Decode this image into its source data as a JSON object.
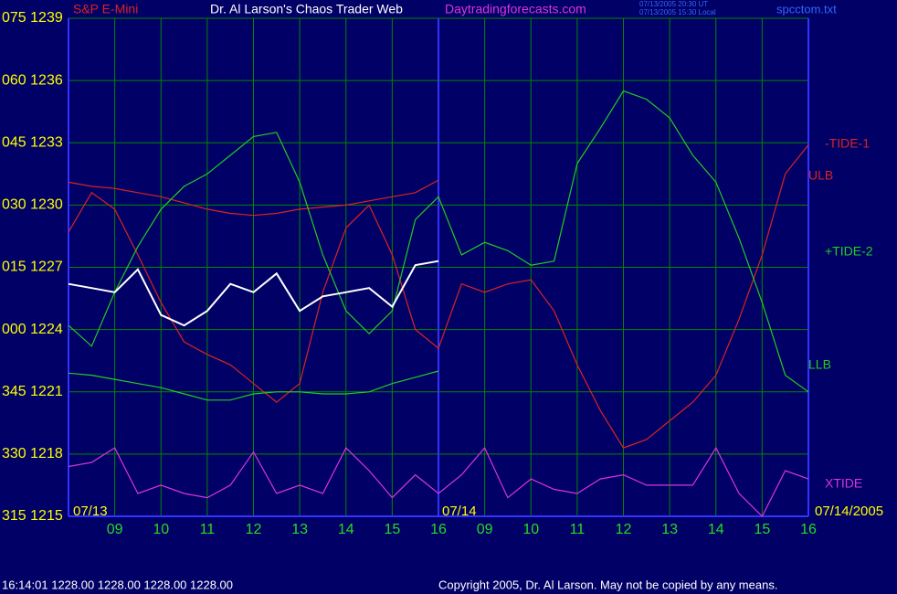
{
  "chart_data": {
    "type": "line",
    "instrument": "S&P E-Mini",
    "title": "Dr. Al Larson's Chaos Trader Web",
    "site": "Daytradingforecasts.com",
    "timestamps": [
      "07/13/2005 20:30 UT",
      "07/13/2005 15:30 Local"
    ],
    "file": "spcctom.txt",
    "dates": [
      "07/13",
      "07/14",
      "07/14/2005"
    ],
    "quote": "16:14:01  1228.00 1228.00 1228.00 1228.00",
    "copyright": "Copyright 2005, Dr. Al Larson. May not be copied by any means.",
    "background": "#000066",
    "grid": true,
    "grid_color": "#008800",
    "xlim": [
      0,
      16
    ],
    "ylim": [
      1215,
      1239
    ],
    "xticks": [
      {
        "value": 1,
        "label": "09"
      },
      {
        "value": 2,
        "label": "10"
      },
      {
        "value": 3,
        "label": "11"
      },
      {
        "value": 4,
        "label": "12"
      },
      {
        "value": 5,
        "label": "13"
      },
      {
        "value": 6,
        "label": "14"
      },
      {
        "value": 7,
        "label": "15"
      },
      {
        "value": 8,
        "label": "16"
      },
      {
        "value": 9,
        "label": "09"
      },
      {
        "value": 10,
        "label": "10"
      },
      {
        "value": 11,
        "label": "11"
      },
      {
        "value": 12,
        "label": "12"
      },
      {
        "value": 13,
        "label": "13"
      },
      {
        "value": 14,
        "label": "14"
      },
      {
        "value": 15,
        "label": "15"
      },
      {
        "value": 16,
        "label": "16"
      }
    ],
    "yticks": [
      {
        "value": 1215,
        "label": "315 1215"
      },
      {
        "value": 1218,
        "label": "330 1218"
      },
      {
        "value": 1221,
        "label": "345 1221"
      },
      {
        "value": 1224,
        "label": "000 1224"
      },
      {
        "value": 1227,
        "label": "015 1227"
      },
      {
        "value": 1230,
        "label": "030 1230"
      },
      {
        "value": 1233,
        "label": "045 1233"
      },
      {
        "value": 1236,
        "label": "060 1236"
      },
      {
        "value": 1239,
        "label": "075 1239"
      }
    ],
    "x": [
      0,
      0.5,
      1,
      1.5,
      2,
      2.5,
      3,
      3.5,
      4,
      4.5,
      5,
      5.5,
      6,
      6.5,
      7,
      7.5,
      8,
      8.5,
      9,
      9.5,
      10,
      10.5,
      11,
      11.5,
      12,
      12.5,
      13,
      13.5,
      14,
      14.5,
      15,
      15.5,
      16
    ],
    "price": {
      "color": "#ffffff",
      "values": [
        1226.2,
        1226.0,
        1225.8,
        1226.9,
        1224.7,
        1224.2,
        1224.9,
        1226.2,
        1225.8,
        1226.7,
        1224.9,
        1225.6,
        1225.8,
        1226.0,
        1225.1,
        1227.1,
        1227.3,
        null,
        null,
        null,
        null,
        null,
        null,
        null,
        null,
        null,
        null,
        null,
        null,
        null,
        null,
        null,
        null
      ]
    },
    "series": [
      {
        "name": "-TIDE-1",
        "color": "#dd2222",
        "values": [
          1228.7,
          1230.6,
          1229.8,
          1227.6,
          1225.3,
          1223.4,
          1222.8,
          1222.3,
          1221.4,
          1220.5,
          1221.4,
          1225.8,
          1228.9,
          1230.0,
          1227.6,
          1224.0,
          1223.1,
          1226.2,
          1225.8,
          1226.2,
          1226.4,
          1224.9,
          1222.3,
          1220.1,
          1218.3,
          1218.7,
          1219.6,
          1220.5,
          1221.8,
          1224.5,
          1227.6,
          1231.5,
          1232.9
        ]
      },
      {
        "name": "ULB",
        "color": "#dd2222",
        "values": [
          1231.1,
          1230.9,
          1230.8,
          1230.6,
          1230.4,
          1230.1,
          1229.8,
          1229.6,
          1229.5,
          1229.6,
          1229.8,
          1229.9,
          1230.0,
          1230.2,
          1230.4,
          1230.6,
          1231.2,
          null,
          null,
          null,
          null,
          null,
          null,
          null,
          null,
          null,
          null,
          null,
          null,
          null,
          null,
          null,
          null
        ]
      },
      {
        "name": "+TIDE-2",
        "color": "#22cc22",
        "values": [
          1224.2,
          1223.2,
          1225.8,
          1228.0,
          1229.8,
          1230.9,
          1231.5,
          1232.4,
          1233.3,
          1233.5,
          1231.1,
          1227.6,
          1224.9,
          1223.8,
          1224.9,
          1229.3,
          1230.4,
          1227.6,
          1228.2,
          1227.8,
          1227.1,
          1227.3,
          1232.0,
          1233.7,
          1235.5,
          1235.1,
          1234.2,
          1232.4,
          1231.1,
          1228.4,
          1225.3,
          1221.8,
          1221.0
        ]
      },
      {
        "name": "LLB",
        "color": "#22cc22",
        "values": [
          1221.9,
          1221.8,
          1221.6,
          1221.4,
          1221.2,
          1220.9,
          1220.6,
          1220.6,
          1220.9,
          1221.0,
          1221.0,
          1220.9,
          1220.9,
          1221.0,
          1221.4,
          1221.7,
          1222.0,
          null,
          null,
          null,
          null,
          null,
          null,
          null,
          null,
          null,
          null,
          null,
          null,
          null,
          null,
          null,
          null
        ]
      },
      {
        "name": "XTIDE",
        "color": "#dd33dd",
        "values": [
          1217.4,
          1217.6,
          1218.3,
          1216.1,
          1216.5,
          1216.1,
          1215.9,
          1216.5,
          1218.1,
          1216.1,
          1216.5,
          1216.1,
          1218.3,
          1217.2,
          1215.9,
          1217.0,
          1216.1,
          1217.0,
          1218.3,
          1215.9,
          1216.8,
          1216.3,
          1216.1,
          1216.8,
          1217.0,
          1216.5,
          1216.5,
          1216.5,
          1218.3,
          1216.1,
          1215.0,
          1217.2,
          1216.8
        ]
      }
    ]
  }
}
